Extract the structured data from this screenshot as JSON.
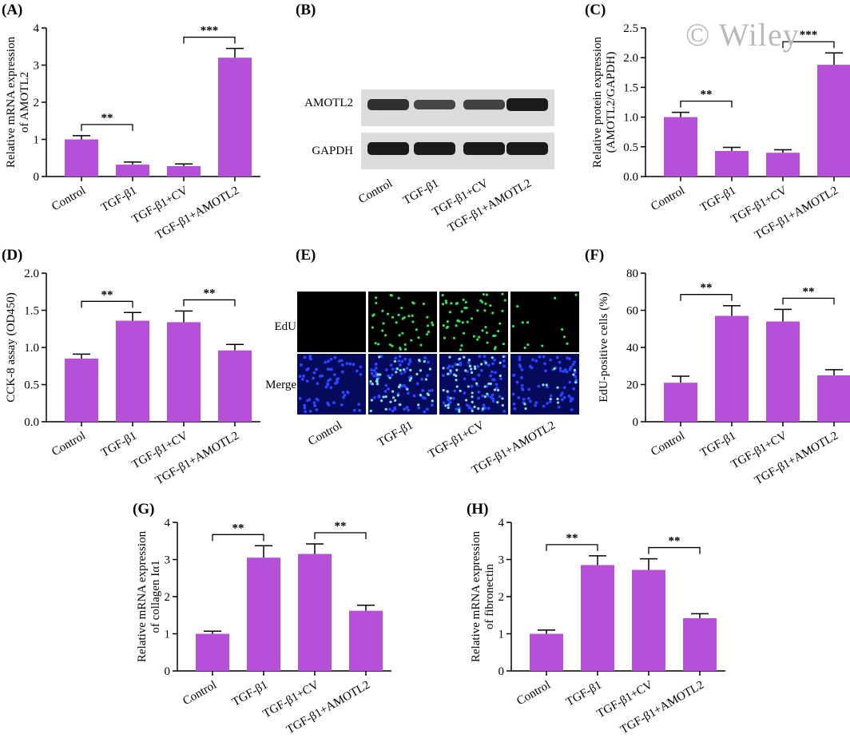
{
  "watermark": "© Wiley",
  "colors": {
    "bar": "#b650d8",
    "axis": "#000000",
    "blot_bg": "#dcdcdc",
    "blot_band": "#1a1a1a"
  },
  "chart_data": [
    {
      "id": "A",
      "panel": "(A)",
      "type": "bar",
      "categories": [
        "Control",
        "TGF-β1",
        "TGF-β1+CV",
        "TGF-β1+AMOTL2"
      ],
      "values": [
        1.0,
        0.32,
        0.28,
        3.2
      ],
      "errors": [
        0.1,
        0.07,
        0.06,
        0.25
      ],
      "ylabel": [
        "Relative mRNA expression",
        "of AMOTL2"
      ],
      "ylim": [
        0,
        4
      ],
      "yticks": [
        "0",
        "1",
        "2",
        "3",
        "4"
      ],
      "significance": [
        {
          "from": 0,
          "to": 1,
          "label": "**"
        },
        {
          "from": 2,
          "to": 3,
          "label": "***"
        }
      ]
    },
    {
      "id": "C",
      "panel": "(C)",
      "type": "bar",
      "categories": [
        "Control",
        "TGF-β1",
        "TGF-β1+CV",
        "TGF-β1+AMOTL2"
      ],
      "values": [
        1.0,
        0.43,
        0.4,
        1.88
      ],
      "errors": [
        0.08,
        0.06,
        0.05,
        0.2
      ],
      "ylabel": [
        "Relative protein expression",
        "(AMOTL2/GAPDH)"
      ],
      "ylim": [
        0,
        2.5
      ],
      "yticks": [
        "0.0",
        "0.5",
        "1.0",
        "1.5",
        "2.0",
        "2.5"
      ],
      "significance": [
        {
          "from": 0,
          "to": 1,
          "label": "**"
        },
        {
          "from": 2,
          "to": 3,
          "label": "***"
        }
      ]
    },
    {
      "id": "D",
      "panel": "(D)",
      "type": "bar",
      "categories": [
        "Control",
        "TGF-β1",
        "TGF-β1+CV",
        "TGF-β1+AMOTL2"
      ],
      "values": [
        0.85,
        1.36,
        1.34,
        0.96
      ],
      "errors": [
        0.06,
        0.11,
        0.15,
        0.08
      ],
      "ylabel": [
        "CCK-8 assay (OD450)"
      ],
      "ylim": [
        0,
        2.0
      ],
      "yticks": [
        "0.0",
        "0.5",
        "1.0",
        "1.5",
        "2.0"
      ],
      "significance": [
        {
          "from": 0,
          "to": 1,
          "label": "**"
        },
        {
          "from": 2,
          "to": 3,
          "label": "**"
        }
      ]
    },
    {
      "id": "F",
      "panel": "(F)",
      "type": "bar",
      "categories": [
        "Control",
        "TGF-β1",
        "TGF-β1+CV",
        "TGF-β1+AMOTL2"
      ],
      "values": [
        21,
        57,
        54,
        25
      ],
      "errors": [
        3.5,
        5.5,
        6.5,
        3
      ],
      "ylabel": [
        "EdU-positive cells (%)"
      ],
      "ylim": [
        0,
        80
      ],
      "yticks": [
        "0",
        "20",
        "40",
        "60",
        "80"
      ],
      "significance": [
        {
          "from": 0,
          "to": 1,
          "label": "**"
        },
        {
          "from": 2,
          "to": 3,
          "label": "**"
        }
      ]
    },
    {
      "id": "G",
      "panel": "(G)",
      "type": "bar",
      "categories": [
        "Control",
        "TGF-β1",
        "TGF-β1+CV",
        "TGF-β1+AMOTL2"
      ],
      "values": [
        1.0,
        3.05,
        3.15,
        1.62
      ],
      "errors": [
        0.07,
        0.32,
        0.27,
        0.15
      ],
      "ylabel": [
        "Relative mRNA expression",
        "of collagen Iα1"
      ],
      "ylim": [
        0,
        4
      ],
      "yticks": [
        "0",
        "1",
        "2",
        "3",
        "4"
      ],
      "significance": [
        {
          "from": 0,
          "to": 1,
          "label": "**"
        },
        {
          "from": 2,
          "to": 3,
          "label": "**"
        }
      ]
    },
    {
      "id": "H",
      "panel": "(H)",
      "type": "bar",
      "categories": [
        "Control",
        "TGF-β1",
        "TGF-β1+CV",
        "TGF-β1+AMOTL2"
      ],
      "values": [
        1.0,
        2.85,
        2.72,
        1.42
      ],
      "errors": [
        0.1,
        0.25,
        0.3,
        0.12
      ],
      "ylabel": [
        "Relative mRNA expression",
        "of fibronectin"
      ],
      "ylim": [
        0,
        4
      ],
      "yticks": [
        "0",
        "1",
        "2",
        "3",
        "4"
      ],
      "significance": [
        {
          "from": 0,
          "to": 1,
          "label": "**"
        },
        {
          "from": 2,
          "to": 3,
          "label": "**"
        }
      ]
    }
  ],
  "western_blot": {
    "panel": "(B)",
    "rows": [
      "AMOTL2",
      "GAPDH"
    ],
    "lanes": [
      "Control",
      "TGF-β1",
      "TGF-β1+CV",
      "TGF-β1+AMOTL2"
    ],
    "band_intensity": {
      "AMOTL2": [
        0.75,
        0.5,
        0.55,
        1.0
      ],
      "GAPDH": [
        1.0,
        1.0,
        1.0,
        1.0
      ]
    }
  },
  "microscopy": {
    "panel": "(E)",
    "rows": [
      "EdU",
      "Merge"
    ],
    "columns": [
      "Control",
      "TGF-β1",
      "TGF-β1+CV",
      "TGF-β1+AMOTL2"
    ]
  }
}
